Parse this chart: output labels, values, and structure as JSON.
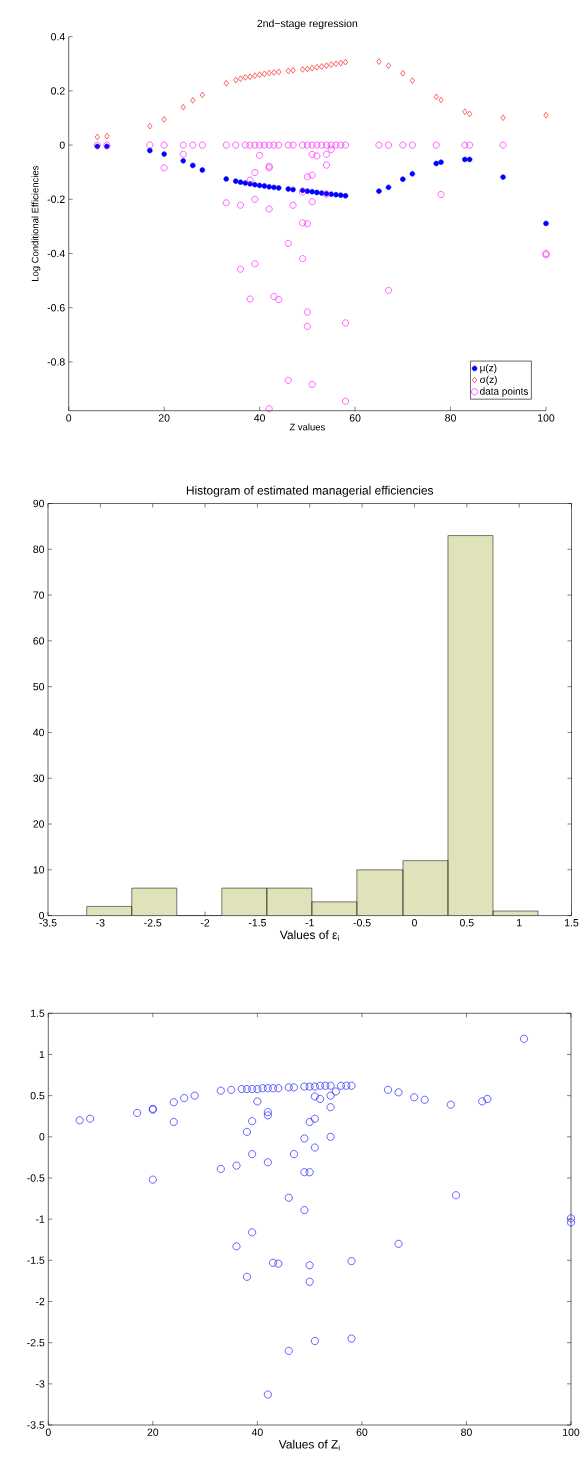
{
  "chart_data": [
    {
      "type": "scatter",
      "title": "2nd−stage regression",
      "xlabel": "Z values",
      "ylabel": "Log Conditional Efficiencies",
      "x": [
        6,
        8,
        17,
        20,
        24,
        26,
        28,
        33,
        35,
        36,
        37,
        38,
        39,
        40,
        41,
        42,
        43,
        44,
        46,
        47,
        49,
        50,
        51,
        52,
        53,
        54,
        55,
        56,
        57,
        58,
        65,
        67,
        70,
        72,
        77,
        78,
        83,
        84,
        91,
        100
      ],
      "series": [
        {
          "name": "μ(z)",
          "color": "#0000ff",
          "marker": "circle",
          "values": [
            -0.005,
            -0.005,
            -0.02,
            -0.033,
            -0.058,
            -0.075,
            -0.092,
            -0.125,
            -0.133,
            -0.137,
            -0.14,
            -0.143,
            -0.146,
            -0.149,
            -0.151,
            -0.154,
            -0.156,
            -0.158,
            -0.162,
            -0.164,
            -0.167,
            -0.17,
            -0.172,
            -0.175,
            -0.177,
            -0.179,
            -0.181,
            -0.183,
            -0.185,
            -0.187,
            -0.17,
            -0.156,
            -0.126,
            -0.106,
            -0.068,
            -0.063,
            -0.053,
            -0.053,
            -0.118,
            -0.289
          ]
        },
        {
          "name": "σ(z)",
          "color": "#ff0000",
          "marker": "diamond",
          "values": [
            0.03,
            0.033,
            0.07,
            0.095,
            0.14,
            0.165,
            0.185,
            0.228,
            0.24,
            0.245,
            0.25,
            0.252,
            0.256,
            0.26,
            0.263,
            0.266,
            0.268,
            0.27,
            0.274,
            0.276,
            0.279,
            0.281,
            0.284,
            0.287,
            0.29,
            0.293,
            0.297,
            0.3,
            0.303,
            0.306,
            0.308,
            0.293,
            0.265,
            0.238,
            0.178,
            0.166,
            0.123,
            0.115,
            0.101,
            0.11
          ]
        },
        {
          "name": "data points",
          "color": "#ff00ff",
          "marker": "circle",
          "x": [
            6,
            8,
            17,
            20,
            24,
            26,
            28,
            33,
            35,
            37,
            38,
            39,
            40,
            41,
            42,
            43,
            44,
            46,
            47,
            49,
            50,
            51,
            52,
            53,
            54,
            55,
            56,
            57,
            58,
            65,
            67,
            70,
            72,
            77,
            83,
            84,
            91,
            20,
            24,
            33,
            36,
            36,
            38,
            38,
            39,
            39,
            39,
            40,
            42,
            42,
            42,
            42,
            43,
            44,
            46,
            46,
            47,
            49,
            49,
            49,
            50,
            50,
            50,
            50,
            51,
            51,
            51,
            51,
            52,
            54,
            54,
            54,
            55,
            58,
            58,
            67,
            78,
            100,
            100
          ],
          "values": [
            0,
            0,
            0,
            0,
            0,
            0,
            0,
            0,
            0,
            0,
            0,
            0,
            0,
            0,
            0,
            0,
            0,
            0,
            0,
            0,
            0,
            0,
            0,
            0,
            0,
            0,
            0,
            0,
            0,
            0,
            0,
            0,
            0,
            0,
            0,
            0,
            0,
            -0.084,
            -0.034,
            -0.213,
            -0.222,
            -0.458,
            -0.129,
            -0.568,
            -0.101,
            -0.2,
            -0.438,
            -0.038,
            -0.078,
            -0.084,
            -0.236,
            -0.973,
            -0.559,
            -0.57,
            -0.363,
            -0.868,
            -0.222,
            -0.173,
            -0.287,
            -0.419,
            -0.117,
            -0.29,
            -0.616,
            -0.669,
            -0.034,
            -0.111,
            -0.209,
            -0.883,
            -0.04,
            -0.034,
            -0.074,
            -0.181,
            -0.016,
            -0.656,
            -0.945,
            -0.536,
            -0.182,
            -0.4,
            -0.405
          ]
        }
      ],
      "xlim": [
        0,
        100
      ],
      "xticks": [
        0,
        20,
        40,
        60,
        80,
        100
      ],
      "ylim": [
        -0.98,
        0.4
      ],
      "yticks": [
        -0.8,
        -0.6,
        -0.4,
        -0.2,
        0,
        0.2,
        0.4
      ],
      "legend": "bottom right"
    },
    {
      "type": "histogram",
      "title": "Histogram of estimated managerial efficiencies",
      "xlabel": "Values of ε$_{i}$",
      "bins": [
        -3.13,
        -2.7,
        -2.27,
        -1.84,
        -1.41,
        -0.98,
        -0.55,
        -0.11,
        0.32,
        0.75,
        1.18
      ],
      "values": [
        2,
        6,
        0,
        6,
        6,
        3,
        10,
        12,
        83,
        1
      ],
      "color": "#e0e3b9",
      "xlim": [
        -3.5,
        1.5
      ],
      "xticks": [
        -3.5,
        -3,
        -2.5,
        -2,
        -1.5,
        -1,
        -0.5,
        0,
        0.5,
        1,
        1.5
      ],
      "ylim": [
        0,
        90
      ],
      "yticks": [
        0,
        10,
        20,
        30,
        40,
        50,
        60,
        70,
        80,
        90
      ]
    },
    {
      "type": "scatter",
      "xlabel": "Values of Z$_{i}$",
      "marker": "circle",
      "color": "#0000ff",
      "x": [
        6,
        8,
        17,
        20,
        20,
        20,
        24,
        24,
        26,
        28,
        33,
        33,
        35,
        36,
        36,
        37,
        38,
        38,
        38,
        39,
        39,
        39,
        39,
        40,
        40,
        41,
        42,
        42,
        42,
        42,
        42,
        43,
        43,
        44,
        44,
        46,
        46,
        46,
        47,
        47,
        49,
        49,
        49,
        49,
        50,
        50,
        50,
        50,
        50,
        51,
        51,
        51,
        51,
        51,
        52,
        52,
        53,
        54,
        54,
        54,
        54,
        55,
        56,
        57,
        58,
        58,
        58,
        65,
        67,
        67,
        70,
        72,
        77,
        78,
        83,
        84,
        91,
        100,
        100
      ],
      "values": [
        0.2,
        0.22,
        0.29,
        0.33,
        0.34,
        -0.52,
        0.42,
        0.18,
        0.47,
        0.5,
        0.56,
        -0.39,
        0.57,
        -0.35,
        -1.33,
        0.58,
        0.58,
        0.06,
        -1.7,
        0.58,
        0.19,
        -0.21,
        -1.16,
        0.58,
        0.43,
        0.59,
        0.59,
        0.3,
        0.26,
        -0.31,
        -3.13,
        0.59,
        -1.53,
        0.59,
        -1.54,
        0.6,
        -0.74,
        -2.6,
        0.6,
        -0.21,
        0.61,
        -0.02,
        -0.43,
        -0.89,
        0.61,
        0.18,
        -0.43,
        -1.56,
        -1.76,
        0.61,
        0.49,
        0.22,
        -0.13,
        -2.48,
        0.62,
        0.46,
        0.62,
        0.62,
        0.5,
        0.36,
        0,
        0.55,
        0.62,
        0.62,
        0.62,
        -1.51,
        -2.45,
        0.57,
        0.54,
        -1.3,
        0.48,
        0.45,
        0.39,
        -0.71,
        0.43,
        0.46,
        1.19,
        -0.99,
        -1.04
      ],
      "xlim": [
        0,
        100
      ],
      "xticks": [
        0,
        20,
        40,
        60,
        80,
        100
      ],
      "ylim": [
        -3.5,
        1.5
      ],
      "yticks": [
        -3.5,
        -3,
        -2.5,
        -2,
        -1.5,
        -1,
        -0.5,
        0,
        0.5,
        1,
        1.5
      ]
    }
  ]
}
